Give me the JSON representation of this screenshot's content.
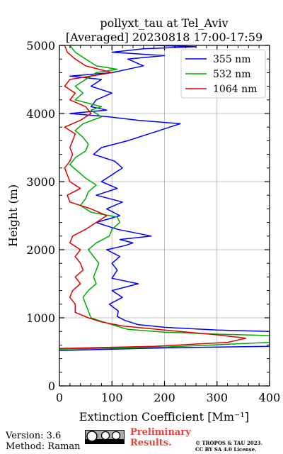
{
  "chart_data": {
    "type": "line",
    "title": "pollyxt_tau at Tel_Aviv",
    "subtitle": "[Averaged] 20230818 17:00-17:59",
    "xlabel": "Extinction Coefficient [Mm⁻¹]",
    "ylabel": "Height (m)",
    "xlim": [
      0,
      400
    ],
    "ylim": [
      0,
      5000
    ],
    "xticks": [
      "0",
      "100",
      "200",
      "300",
      "400"
    ],
    "yticks": [
      "0",
      "1000",
      "2000",
      "3000",
      "4000",
      "5000"
    ],
    "grid": true,
    "legend_position": "top-right",
    "series": [
      {
        "name": "355 nm",
        "color": "#0000ff",
        "points": [
          [
            0,
            520
          ],
          [
            210,
            560
          ],
          [
            400,
            580
          ],
          [
            400,
            800
          ],
          [
            300,
            820
          ],
          [
            200,
            860
          ],
          [
            150,
            900
          ],
          [
            125,
            960
          ],
          [
            110,
            1020
          ],
          [
            112,
            1100
          ],
          [
            95,
            1200
          ],
          [
            120,
            1300
          ],
          [
            100,
            1400
          ],
          [
            150,
            1500
          ],
          [
            100,
            1580
          ],
          [
            110,
            1700
          ],
          [
            100,
            1800
          ],
          [
            115,
            1900
          ],
          [
            90,
            2000
          ],
          [
            125,
            2060
          ],
          [
            140,
            2100
          ],
          [
            115,
            2150
          ],
          [
            175,
            2200
          ],
          [
            110,
            2300
          ],
          [
            70,
            2400
          ],
          [
            115,
            2500
          ],
          [
            90,
            2600
          ],
          [
            120,
            2700
          ],
          [
            70,
            2800
          ],
          [
            110,
            2900
          ],
          [
            80,
            3000
          ],
          [
            100,
            3100
          ],
          [
            120,
            3200
          ],
          [
            105,
            3300
          ],
          [
            65,
            3400
          ],
          [
            80,
            3500
          ],
          [
            130,
            3600
          ],
          [
            170,
            3700
          ],
          [
            210,
            3800
          ],
          [
            230,
            3850
          ],
          [
            150,
            3900
          ],
          [
            95,
            3950
          ],
          [
            20,
            4000
          ],
          [
            90,
            4050
          ],
          [
            60,
            4100
          ],
          [
            70,
            4200
          ],
          [
            100,
            4300
          ],
          [
            60,
            4400
          ],
          [
            80,
            4500
          ],
          [
            20,
            4550
          ],
          [
            100,
            4600
          ],
          [
            160,
            4700
          ],
          [
            130,
            4800
          ],
          [
            200,
            4850
          ],
          [
            100,
            4900
          ],
          [
            160,
            4950
          ],
          [
            260,
            4980
          ],
          [
            180,
            5000
          ]
        ]
      },
      {
        "name": "532 nm",
        "color": "#00aa00",
        "points": [
          [
            0,
            540
          ],
          [
            200,
            570
          ],
          [
            400,
            640
          ],
          [
            400,
            740
          ],
          [
            300,
            760
          ],
          [
            200,
            790
          ],
          [
            130,
            830
          ],
          [
            100,
            900
          ],
          [
            75,
            960
          ],
          [
            60,
            1000
          ],
          [
            55,
            1100
          ],
          [
            50,
            1200
          ],
          [
            45,
            1300
          ],
          [
            55,
            1400
          ],
          [
            70,
            1500
          ],
          [
            65,
            1600
          ],
          [
            70,
            1700
          ],
          [
            75,
            1800
          ],
          [
            65,
            1900
          ],
          [
            55,
            2000
          ],
          [
            70,
            2100
          ],
          [
            95,
            2200
          ],
          [
            100,
            2300
          ],
          [
            115,
            2400
          ],
          [
            110,
            2480
          ],
          [
            60,
            2550
          ],
          [
            40,
            2650
          ],
          [
            50,
            2750
          ],
          [
            55,
            2850
          ],
          [
            70,
            2950
          ],
          [
            50,
            3050
          ],
          [
            35,
            3150
          ],
          [
            20,
            3250
          ],
          [
            30,
            3350
          ],
          [
            50,
            3450
          ],
          [
            55,
            3550
          ],
          [
            45,
            3650
          ],
          [
            30,
            3750
          ],
          [
            45,
            3850
          ],
          [
            80,
            3950
          ],
          [
            60,
            4050
          ],
          [
            80,
            4100
          ],
          [
            30,
            4200
          ],
          [
            45,
            4300
          ],
          [
            30,
            4400
          ],
          [
            50,
            4500
          ],
          [
            70,
            4600
          ],
          [
            110,
            4650
          ],
          [
            70,
            4700
          ],
          [
            50,
            4800
          ],
          [
            30,
            4900
          ],
          [
            20,
            5000
          ]
        ]
      },
      {
        "name": "1064 nm",
        "color": "#dd0000",
        "points": [
          [
            0,
            550
          ],
          [
            180,
            580
          ],
          [
            320,
            640
          ],
          [
            355,
            700
          ],
          [
            300,
            750
          ],
          [
            200,
            820
          ],
          [
            120,
            880
          ],
          [
            80,
            940
          ],
          [
            55,
            1000
          ],
          [
            30,
            1080
          ],
          [
            30,
            1200
          ],
          [
            20,
            1300
          ],
          [
            25,
            1400
          ],
          [
            40,
            1500
          ],
          [
            30,
            1600
          ],
          [
            45,
            1700
          ],
          [
            40,
            1800
          ],
          [
            30,
            1900
          ],
          [
            40,
            2000
          ],
          [
            20,
            2100
          ],
          [
            25,
            2200
          ],
          [
            50,
            2300
          ],
          [
            70,
            2400
          ],
          [
            90,
            2500
          ],
          [
            60,
            2600
          ],
          [
            20,
            2700
          ],
          [
            15,
            2800
          ],
          [
            40,
            2900
          ],
          [
            20,
            3000
          ],
          [
            15,
            3100
          ],
          [
            10,
            3200
          ],
          [
            20,
            3300
          ],
          [
            25,
            3400
          ],
          [
            20,
            3500
          ],
          [
            25,
            3600
          ],
          [
            30,
            3700
          ],
          [
            10,
            3800
          ],
          [
            40,
            3900
          ],
          [
            60,
            4000
          ],
          [
            50,
            4100
          ],
          [
            20,
            4200
          ],
          [
            30,
            4300
          ],
          [
            10,
            4400
          ],
          [
            20,
            4500
          ],
          [
            60,
            4550
          ],
          [
            100,
            4600
          ],
          [
            50,
            4700
          ],
          [
            30,
            4800
          ],
          [
            15,
            4900
          ],
          [
            10,
            5000
          ]
        ]
      }
    ]
  },
  "footer": {
    "version": "Version: 3.6",
    "method": "Method: Raman",
    "preliminary_line1": "Preliminary",
    "preliminary_line2": "Results.",
    "license_line1": "© TROPOS & TAU 2023.",
    "license_line2": "CC BY SA 4.0 License.",
    "badge_icon": "cc-by-sa-badge-icon"
  }
}
